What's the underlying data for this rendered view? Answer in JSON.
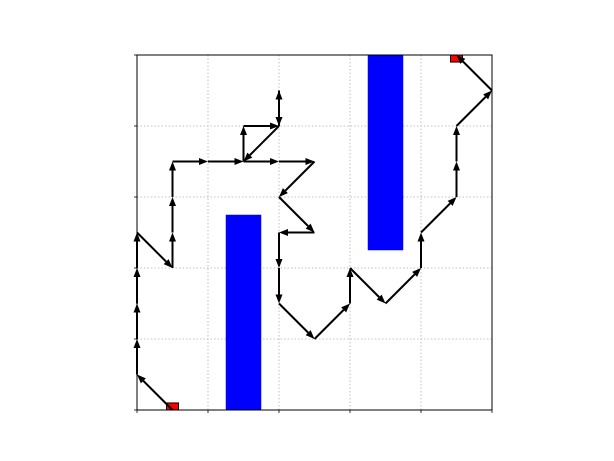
{
  "chart_data": {
    "type": "path-grid",
    "xlim": [
      0,
      5
    ],
    "ylim": [
      0,
      5
    ],
    "grid": true,
    "grid_style": "dotted",
    "tick_positions": [
      0,
      1,
      2,
      3,
      4,
      5
    ],
    "obstacle_color": "#0000ff",
    "endpoint_color": "#ff0000",
    "path_color": "#000000",
    "obstacles": [
      {
        "name": "obstacle-lower",
        "x0": 1.25,
        "x1": 1.75,
        "y0": 0.0,
        "y1": 2.75
      },
      {
        "name": "obstacle-upper",
        "x0": 3.25,
        "x1": 3.75,
        "y0": 2.25,
        "y1": 5.0
      }
    ],
    "endpoints": [
      {
        "name": "start-marker",
        "x": 0.5,
        "y": 0.05
      },
      {
        "name": "goal-marker",
        "x": 4.5,
        "y": 4.95
      }
    ],
    "path_segments": [
      [
        0.5,
        0.0,
        0.0,
        0.5
      ],
      [
        0.0,
        0.5,
        0.0,
        1.0
      ],
      [
        0.0,
        1.0,
        0.0,
        1.5
      ],
      [
        0.0,
        1.5,
        0.0,
        2.0
      ],
      [
        0.0,
        2.0,
        0.0,
        2.5
      ],
      [
        0.0,
        2.5,
        0.5,
        2.0
      ],
      [
        0.5,
        2.0,
        0.5,
        2.5
      ],
      [
        0.5,
        2.5,
        0.5,
        3.0
      ],
      [
        0.5,
        3.0,
        0.5,
        3.5
      ],
      [
        0.5,
        3.5,
        1.0,
        3.5
      ],
      [
        1.0,
        3.5,
        1.5,
        3.5
      ],
      [
        1.5,
        3.5,
        1.5,
        4.0
      ],
      [
        1.5,
        4.0,
        2.0,
        4.0
      ],
      [
        2.0,
        4.0,
        2.0,
        4.5
      ],
      [
        2.0,
        4.5,
        2.0,
        4.0
      ],
      [
        2.0,
        4.0,
        1.5,
        3.5
      ],
      [
        1.5,
        3.5,
        2.0,
        3.5
      ],
      [
        2.0,
        3.5,
        2.5,
        3.5
      ],
      [
        2.5,
        3.5,
        2.0,
        3.0
      ],
      [
        2.0,
        3.0,
        2.5,
        2.5
      ],
      [
        2.5,
        2.5,
        2.0,
        2.5
      ],
      [
        2.0,
        2.5,
        2.0,
        2.0
      ],
      [
        2.0,
        2.0,
        2.0,
        1.5
      ],
      [
        2.0,
        1.5,
        2.5,
        1.0
      ],
      [
        2.5,
        1.0,
        3.0,
        1.5
      ],
      [
        3.0,
        1.5,
        3.0,
        2.0
      ],
      [
        3.0,
        2.0,
        3.5,
        1.5
      ],
      [
        3.5,
        1.5,
        4.0,
        2.0
      ],
      [
        4.0,
        2.0,
        4.0,
        2.5
      ],
      [
        4.0,
        2.5,
        4.5,
        3.0
      ],
      [
        4.5,
        3.0,
        4.5,
        3.5
      ],
      [
        4.5,
        3.5,
        4.5,
        4.0
      ],
      [
        4.5,
        4.0,
        5.0,
        4.5
      ],
      [
        5.0,
        4.5,
        4.5,
        5.0
      ]
    ]
  }
}
